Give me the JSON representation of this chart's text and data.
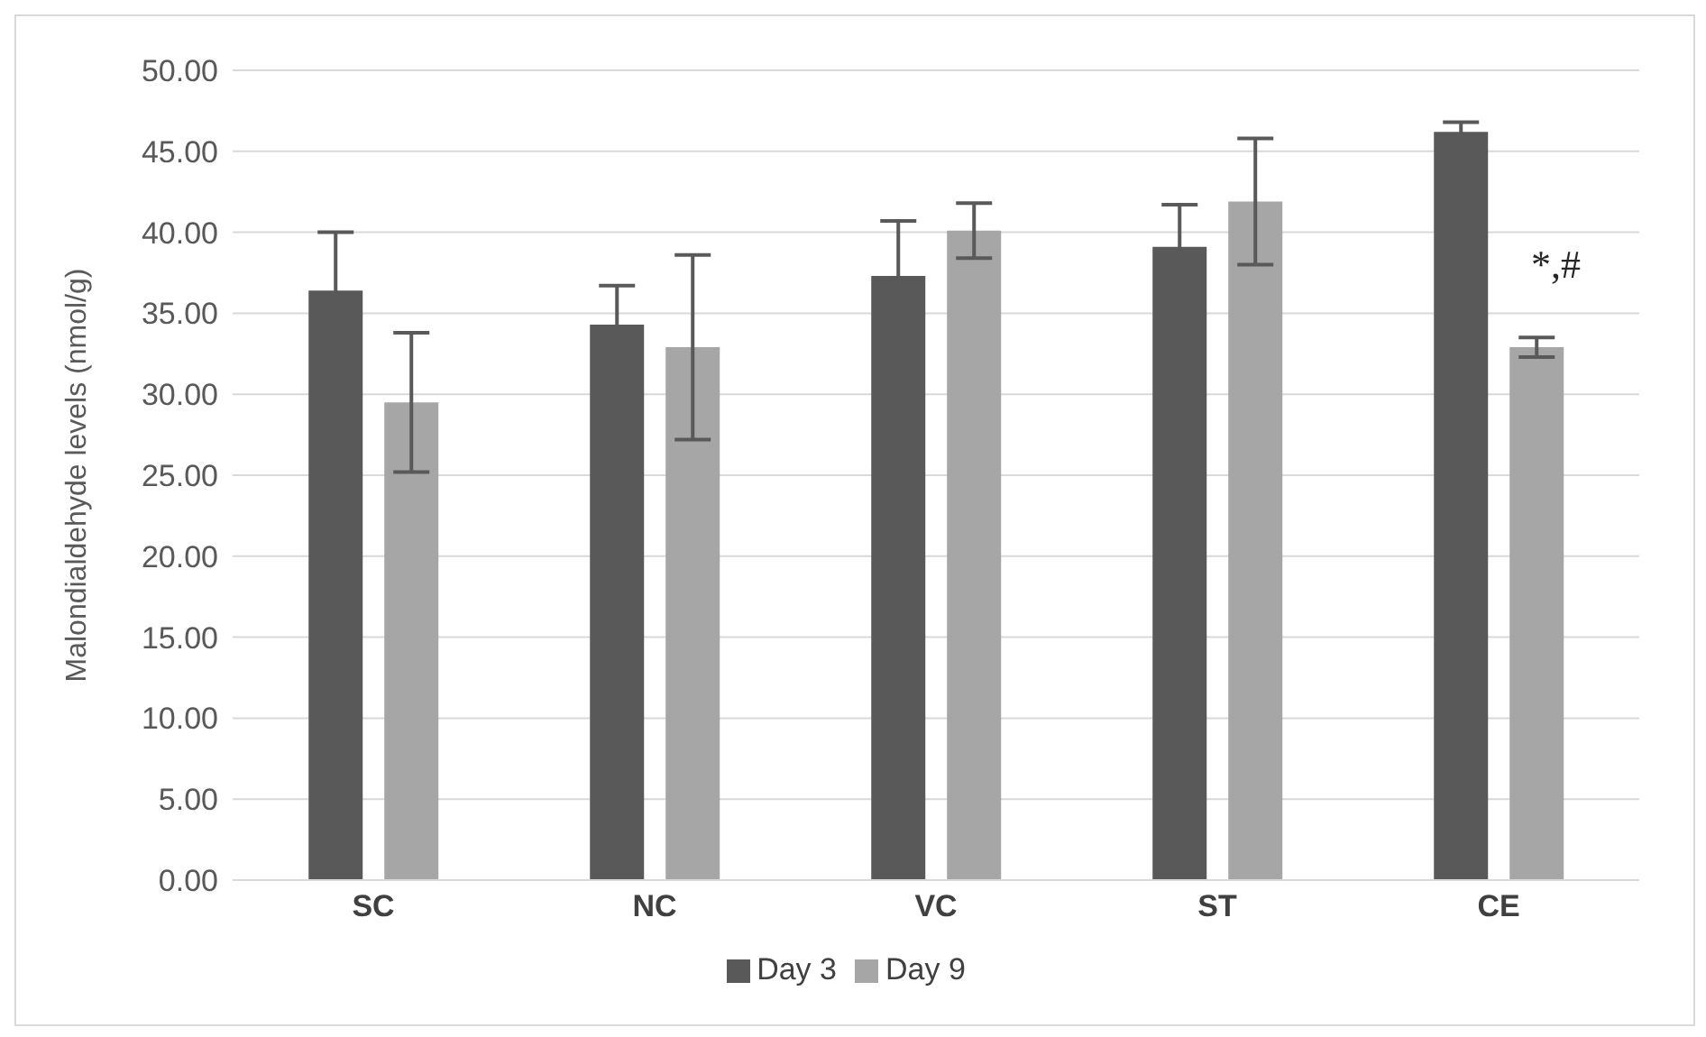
{
  "chart_data": {
    "type": "bar",
    "ylabel": "Malondialdehyde  levels  (nmol/g)",
    "categories": [
      "SC",
      "NC",
      "VC",
      "ST",
      "CE"
    ],
    "series": [
      {
        "name": "Day 3",
        "color": "#595959",
        "values": [
          36.4,
          34.3,
          37.3,
          39.1,
          46.2
        ],
        "errors": [
          3.6,
          2.4,
          3.4,
          2.6,
          0.6
        ]
      },
      {
        "name": "Day 9",
        "color": "#a6a6a6",
        "values": [
          29.5,
          32.9,
          40.1,
          41.9,
          32.9
        ],
        "errors": [
          4.3,
          5.7,
          1.7,
          3.9,
          0.6
        ]
      }
    ],
    "ylim": [
      0,
      50
    ],
    "yticks": [
      {
        "value": 0,
        "label": "0.00"
      },
      {
        "value": 5,
        "label": "5.00"
      },
      {
        "value": 10,
        "label": "10.00"
      },
      {
        "value": 15,
        "label": "15.00"
      },
      {
        "value": 20,
        "label": "20.00"
      },
      {
        "value": 25,
        "label": "25.00"
      },
      {
        "value": 30,
        "label": "30.00"
      },
      {
        "value": 35,
        "label": "35.00"
      },
      {
        "value": 40,
        "label": "40.00"
      },
      {
        "value": 45,
        "label": "45.00"
      },
      {
        "value": 50,
        "label": "50.00"
      }
    ],
    "grid": "y",
    "legend": "bottom",
    "annotations": [
      "*,#"
    ]
  }
}
